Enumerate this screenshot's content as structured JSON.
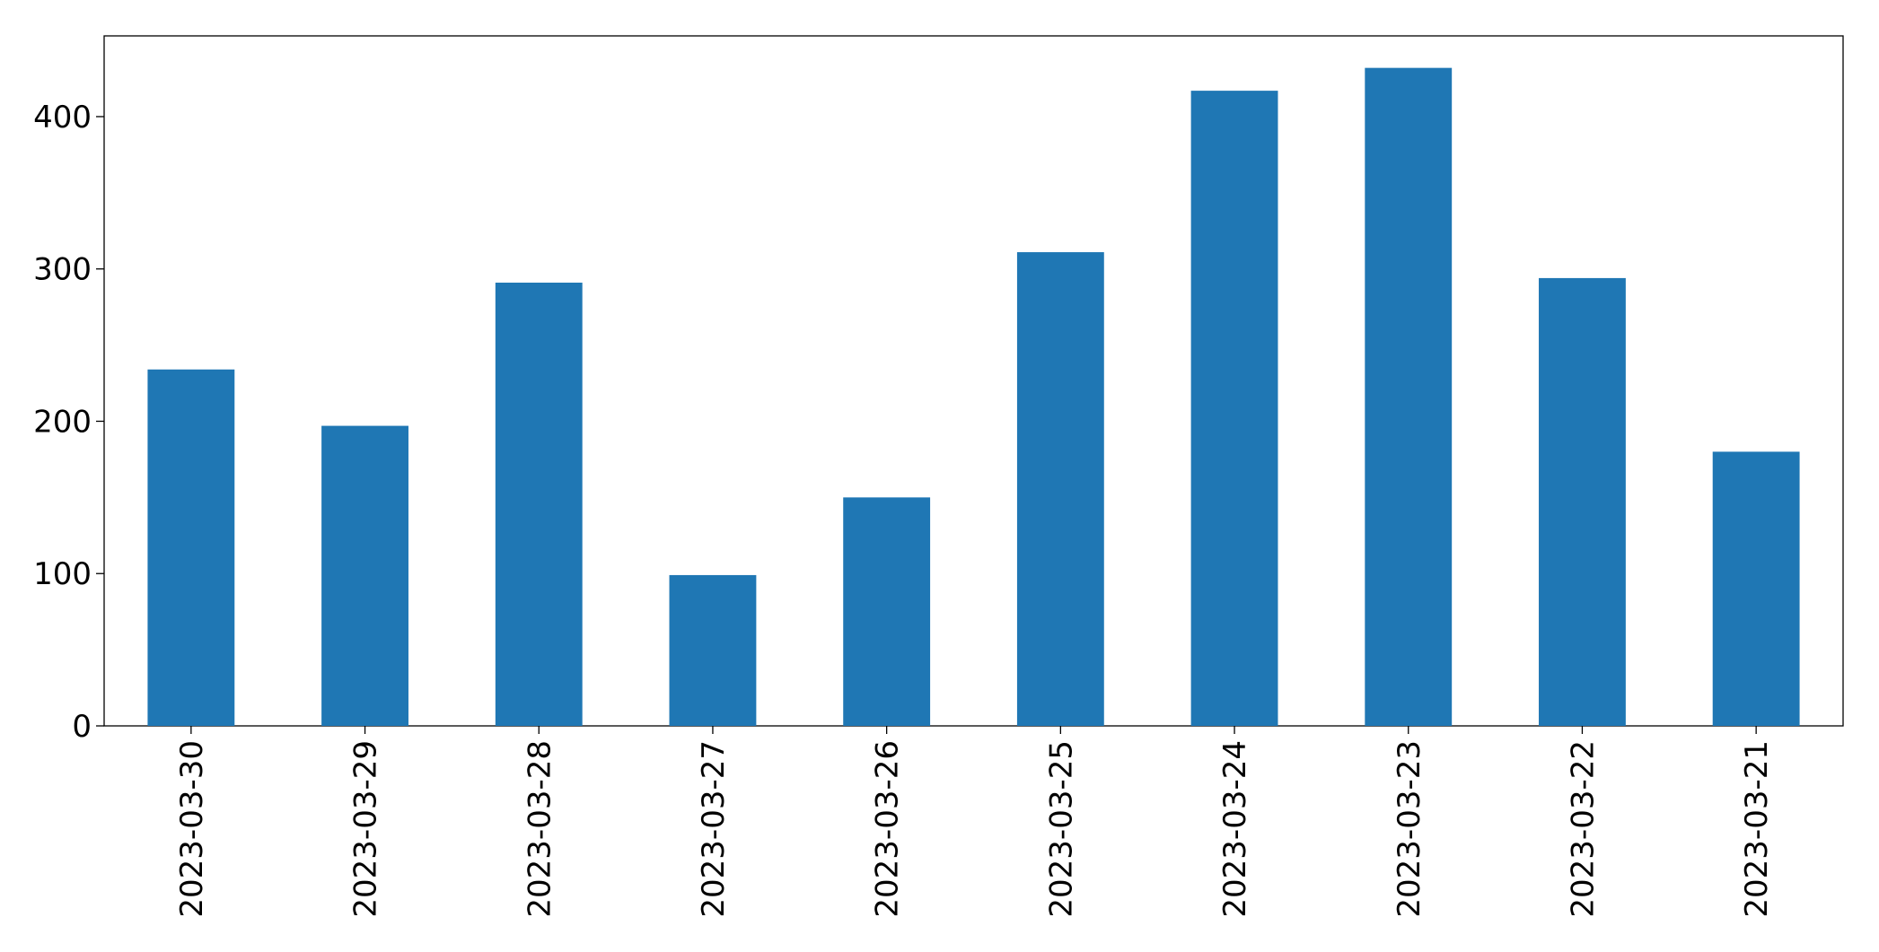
{
  "chart_data": {
    "type": "bar",
    "categories": [
      "2023-03-30",
      "2023-03-29",
      "2023-03-28",
      "2023-03-27",
      "2023-03-26",
      "2023-03-25",
      "2023-03-24",
      "2023-03-23",
      "2023-03-22",
      "2023-03-21"
    ],
    "values": [
      234,
      197,
      291,
      99,
      150,
      311,
      417,
      432,
      294,
      180
    ],
    "color": "#1f77b4",
    "ylim": [
      0,
      453
    ],
    "yticks": [
      0,
      100,
      200,
      300,
      400
    ],
    "grid": false
  }
}
